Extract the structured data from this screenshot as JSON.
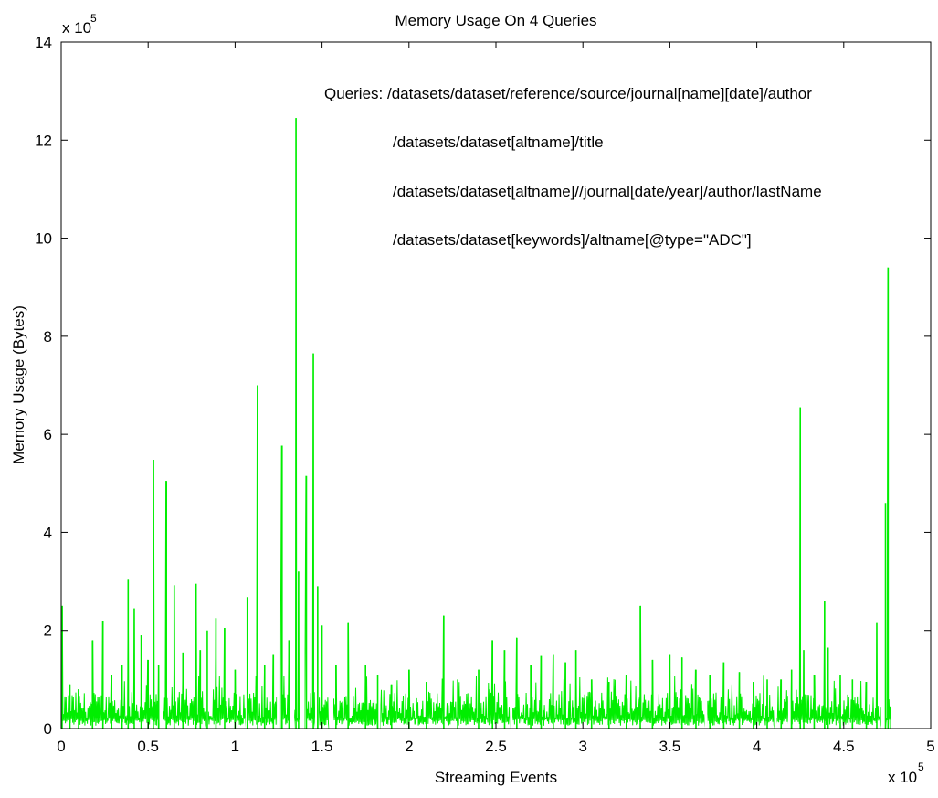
{
  "chart_data": {
    "type": "line",
    "title": "Memory Usage On 4 Queries",
    "xlabel": "Streaming Events",
    "ylabel": "Memory Usage (Bytes)",
    "x_multiplier": "x 10",
    "x_multiplier_exp": "5",
    "y_multiplier": "x 10",
    "y_multiplier_exp": "5",
    "xlim": [
      0,
      500000
    ],
    "ylim": [
      0,
      1400000
    ],
    "x_ticks": [
      0,
      50000,
      100000,
      150000,
      200000,
      250000,
      300000,
      350000,
      400000,
      450000,
      500000
    ],
    "x_tick_labels": [
      "0",
      "0.5",
      "1",
      "1.5",
      "2",
      "2.5",
      "3",
      "3.5",
      "4",
      "4.5",
      "5"
    ],
    "y_ticks": [
      0,
      200000,
      400000,
      600000,
      800000,
      1000000,
      1200000,
      1400000
    ],
    "y_tick_labels": [
      "0",
      "2",
      "4",
      "6",
      "8",
      "10",
      "12",
      "14"
    ],
    "grid": false,
    "annotations": [
      "Queries: /datasets/dataset/reference/source/journal[name][date]/author",
      "/datasets/dataset[altname]/title",
      "/datasets/dataset[altname]//journal[date/year]/author/lastName",
      "/datasets/dataset[keywords]/altname[@type=\"ADC\"]"
    ],
    "series_color": "#00ee00",
    "x_end": 477000,
    "baseline_low": 20000,
    "baseline_high": 75000,
    "peaks": [
      {
        "x": 500,
        "y": 250000
      },
      {
        "x": 5000,
        "y": 90000
      },
      {
        "x": 10000,
        "y": 80000
      },
      {
        "x": 18000,
        "y": 180000
      },
      {
        "x": 24000,
        "y": 220000
      },
      {
        "x": 29000,
        "y": 110000
      },
      {
        "x": 35000,
        "y": 130000
      },
      {
        "x": 38500,
        "y": 305000
      },
      {
        "x": 42000,
        "y": 245000
      },
      {
        "x": 46000,
        "y": 190000
      },
      {
        "x": 50000,
        "y": 140000
      },
      {
        "x": 53000,
        "y": 548000
      },
      {
        "x": 56000,
        "y": 130000
      },
      {
        "x": 60500,
        "y": 505000
      },
      {
        "x": 65000,
        "y": 292000
      },
      {
        "x": 70000,
        "y": 155000
      },
      {
        "x": 77500,
        "y": 295000
      },
      {
        "x": 80000,
        "y": 160000
      },
      {
        "x": 84000,
        "y": 200000
      },
      {
        "x": 89000,
        "y": 225000
      },
      {
        "x": 94000,
        "y": 205000
      },
      {
        "x": 100000,
        "y": 120000
      },
      {
        "x": 107000,
        "y": 268000
      },
      {
        "x": 113000,
        "y": 700000
      },
      {
        "x": 117000,
        "y": 130000
      },
      {
        "x": 122000,
        "y": 150000
      },
      {
        "x": 127000,
        "y": 577000
      },
      {
        "x": 131000,
        "y": 180000
      },
      {
        "x": 135000,
        "y": 1245000
      },
      {
        "x": 136500,
        "y": 320000
      },
      {
        "x": 141000,
        "y": 515000
      },
      {
        "x": 145000,
        "y": 765000
      },
      {
        "x": 147500,
        "y": 290000
      },
      {
        "x": 150000,
        "y": 210000
      },
      {
        "x": 158000,
        "y": 130000
      },
      {
        "x": 165000,
        "y": 215000
      },
      {
        "x": 175000,
        "y": 130000
      },
      {
        "x": 182000,
        "y": 110000
      },
      {
        "x": 190000,
        "y": 90000
      },
      {
        "x": 200000,
        "y": 120000
      },
      {
        "x": 210000,
        "y": 95000
      },
      {
        "x": 220000,
        "y": 230000
      },
      {
        "x": 228000,
        "y": 100000
      },
      {
        "x": 240000,
        "y": 120000
      },
      {
        "x": 248000,
        "y": 180000
      },
      {
        "x": 255000,
        "y": 160000
      },
      {
        "x": 262000,
        "y": 185000
      },
      {
        "x": 270000,
        "y": 130000
      },
      {
        "x": 276000,
        "y": 148000
      },
      {
        "x": 283000,
        "y": 150000
      },
      {
        "x": 290000,
        "y": 135000
      },
      {
        "x": 296000,
        "y": 160000
      },
      {
        "x": 305000,
        "y": 100000
      },
      {
        "x": 315000,
        "y": 95000
      },
      {
        "x": 325000,
        "y": 110000
      },
      {
        "x": 333000,
        "y": 250000
      },
      {
        "x": 340000,
        "y": 140000
      },
      {
        "x": 350000,
        "y": 150000
      },
      {
        "x": 357000,
        "y": 145000
      },
      {
        "x": 365000,
        "y": 120000
      },
      {
        "x": 373000,
        "y": 110000
      },
      {
        "x": 381000,
        "y": 135000
      },
      {
        "x": 390000,
        "y": 115000
      },
      {
        "x": 398000,
        "y": 95000
      },
      {
        "x": 406000,
        "y": 100000
      },
      {
        "x": 414000,
        "y": 100000
      },
      {
        "x": 420000,
        "y": 120000
      },
      {
        "x": 425000,
        "y": 655000
      },
      {
        "x": 427000,
        "y": 160000
      },
      {
        "x": 433000,
        "y": 110000
      },
      {
        "x": 439000,
        "y": 260000
      },
      {
        "x": 441000,
        "y": 165000
      },
      {
        "x": 448000,
        "y": 110000
      },
      {
        "x": 455000,
        "y": 100000
      },
      {
        "x": 463000,
        "y": 95000
      },
      {
        "x": 469000,
        "y": 215000
      },
      {
        "x": 474000,
        "y": 460000
      },
      {
        "x": 475500,
        "y": 940000
      },
      {
        "x": 477000,
        "y": 45000
      }
    ],
    "gaps": [
      [
        56500,
        58500
      ],
      [
        83000,
        84500
      ],
      [
        106000,
        107500
      ],
      [
        124000,
        126000
      ],
      [
        131500,
        134000
      ],
      [
        137500,
        140000
      ],
      [
        146000,
        148000
      ],
      [
        154000,
        156500
      ],
      [
        182000,
        183500
      ],
      [
        258000,
        259500
      ],
      [
        370000,
        371500
      ],
      [
        410000,
        411500
      ],
      [
        418000,
        419500
      ],
      [
        471500,
        474000
      ]
    ]
  }
}
